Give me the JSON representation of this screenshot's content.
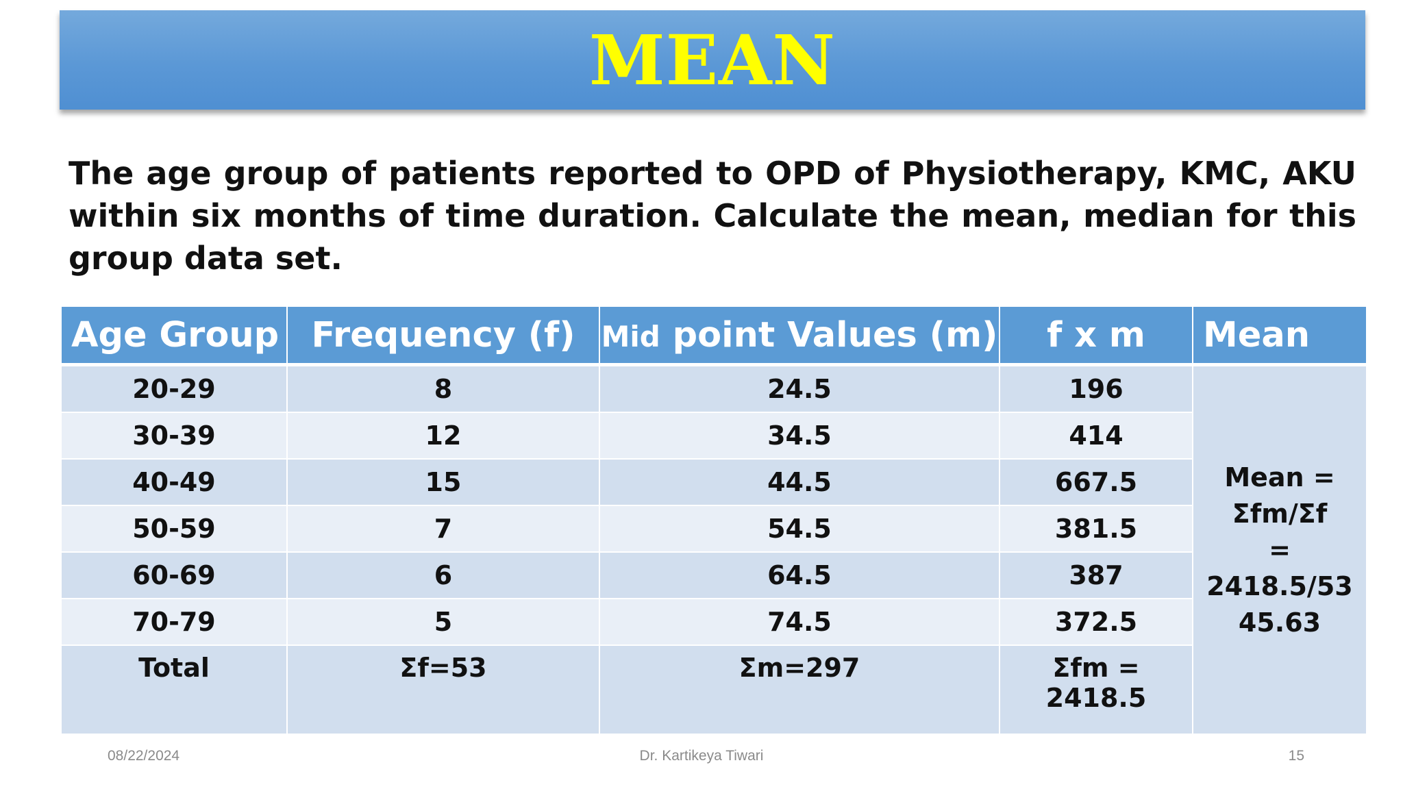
{
  "title": "MEAN",
  "question": "The age group of patients reported to OPD of Physiotherapy, KMC, AKU within six months of time duration. Calculate the mean, median for this group data set.",
  "table": {
    "headers": {
      "age_group": "Age Group",
      "frequency": "Frequency (f)",
      "mid_prefix": "Mid",
      "mid_rest": " point Values (m)",
      "fxm": "f x m",
      "mean": "Mean"
    },
    "rows": [
      {
        "age": "20-29",
        "f": "8",
        "m": "24.5",
        "fm": "196"
      },
      {
        "age": "30-39",
        "f": "12",
        "m": "34.5",
        "fm": "414"
      },
      {
        "age": "40-49",
        "f": "15",
        "m": "44.5",
        "fm": "667.5"
      },
      {
        "age": "50-59",
        "f": "7",
        "m": "54.5",
        "fm": "381.5"
      },
      {
        "age": "60-69",
        "f": "6",
        "m": "64.5",
        "fm": "387"
      },
      {
        "age": "70-79",
        "f": "5",
        "m": "74.5",
        "fm": "372.5"
      }
    ],
    "total": {
      "label": "Total",
      "f": "Σf=53",
      "m": "Σm=297",
      "fm": "Σfm = 2418.5"
    },
    "mean_result": {
      "line1": "Mean =",
      "line2": "Σfm/Σf",
      "line3": "= 2418.5/53",
      "line4": "45.63"
    }
  },
  "footer": {
    "date": "08/22/2024",
    "author": "Dr. Kartikeya Tiwari",
    "page": "15"
  },
  "colors": {
    "title_bar": "#5b9bd5",
    "title_text": "#ffff00",
    "header_bg": "#5b9bd5",
    "row_dark": "#d1deee",
    "row_light": "#e9eff7"
  }
}
